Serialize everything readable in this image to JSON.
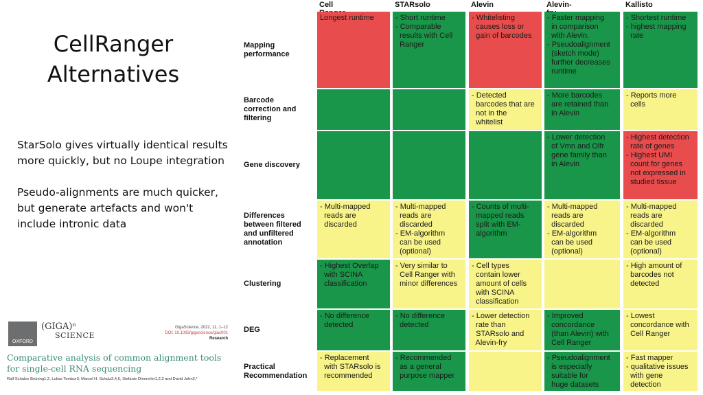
{
  "slide": {
    "title_lines": [
      "CellRanger",
      "Alternatives"
    ],
    "note1": "StarSolo gives virtually identical results more quickly, but no Loupe integration",
    "note2": "Pseudo-alignments are much quicker, but generate artefacts and won't include intronic data"
  },
  "paper": {
    "publisher": "OXFORD",
    "journal_a": "(GIGA)ⁿ",
    "journal_b": "SCIENCE",
    "citation": "GigaScience, 2022, 11, 1–12",
    "doi": "DOI: 10.1093/gigascience/giac001",
    "type": "Research",
    "title": "Comparative analysis of common alignment tools for single-cell RNA sequencing",
    "authors": "Ralf Schulze Brüning1,2, Lukas Tombor3, Marcel H. Schulz3,4,5, Stefanie Dimmeler1,2,3 and David John3,*"
  },
  "colors": {
    "red": "#e84c4c",
    "green": "#1a964a",
    "yellow": "#f8f48a"
  },
  "table": {
    "columns": [
      "Cell Ranger",
      "STARsolo",
      "Alevin",
      "Alevin-fry",
      "Kallisto"
    ],
    "rows": [
      {
        "label": [
          "Mapping",
          "performance"
        ],
        "cells": [
          {
            "color": "red",
            "lines": [
              "Longest runtime"
            ]
          },
          {
            "color": "green",
            "lines": [
              "- Short runtime",
              "- Comparable",
              "  results with Cell",
              "  Ranger"
            ]
          },
          {
            "color": "red",
            "lines": [
              "- Whitelisting",
              "  causes loss or",
              "  gain of barcodes"
            ]
          },
          {
            "color": "green",
            "lines": [
              "- Faster mapping",
              "  in comparison",
              "  with Alevin.",
              "- Pseudoalignment",
              "  (sketch mode)",
              "  further decreases",
              "  runtime"
            ]
          },
          {
            "color": "green",
            "lines": [
              "- Shortest runtime",
              "- highest mapping",
              "  rate"
            ]
          }
        ]
      },
      {
        "label": [
          "Barcode",
          "correction and",
          "filtering"
        ],
        "cells": [
          {
            "color": "green",
            "lines": []
          },
          {
            "color": "green",
            "lines": []
          },
          {
            "color": "yellow",
            "lines": [
              "- Detected",
              "  barcodes that are",
              "  not in the",
              "  whitelist"
            ]
          },
          {
            "color": "green",
            "lines": [
              "- More barcodes",
              "  are retained than",
              "  in Alevin"
            ]
          },
          {
            "color": "yellow",
            "lines": [
              "- Reports more",
              "  cells"
            ]
          }
        ]
      },
      {
        "label": [
          "Gene discovery"
        ],
        "cells": [
          {
            "color": "green",
            "lines": []
          },
          {
            "color": "green",
            "lines": []
          },
          {
            "color": "green",
            "lines": []
          },
          {
            "color": "green",
            "lines": [
              "- Lower detection",
              "  of Vmn and Olfr",
              "  gene family than",
              "  in Alevin"
            ]
          },
          {
            "color": "red",
            "lines": [
              "- Highest detection",
              "  rate of genes",
              "- Highest UMI",
              "  count for genes",
              "  not expressed in",
              "  studied tissue"
            ]
          }
        ]
      },
      {
        "label": [
          "Differences",
          "between filtered",
          "and unfiltered",
          "annotation"
        ],
        "cells": [
          {
            "color": "yellow",
            "lines": [
              "- Multi-mapped",
              "  reads are",
              "  discarded"
            ]
          },
          {
            "color": "yellow",
            "lines": [
              "- Multi-mapped",
              "  reads are",
              "  discarded",
              "- EM-algorithm",
              "  can be used",
              "  (optional)"
            ]
          },
          {
            "color": "green",
            "lines": [
              "- Counts of multi-",
              "  mapped reads",
              "  split with EM-",
              "  algorithm"
            ]
          },
          {
            "color": "yellow",
            "lines": [
              "- Multi-mapped",
              "  reads are",
              "  discarded",
              "- EM-algorithm",
              "  can be used",
              "  (optional)"
            ]
          },
          {
            "color": "yellow",
            "lines": [
              "- Multi-mapped",
              "  reads are",
              "  discarded",
              "- EM-algorithm",
              "  can be used",
              "  (optional)"
            ]
          }
        ]
      },
      {
        "label": [
          "Clustering"
        ],
        "cells": [
          {
            "color": "green",
            "lines": [
              "- Highest Overlap",
              "  with SCINA",
              "  classification"
            ]
          },
          {
            "color": "yellow",
            "lines": [
              "- Very similar to",
              "  Cell Ranger with",
              "  minor differences"
            ]
          },
          {
            "color": "yellow",
            "lines": [
              "- Cell types",
              "  contain lower",
              "  amount of cells",
              "  with SCINA",
              "  classification"
            ]
          },
          {
            "color": "yellow",
            "lines": []
          },
          {
            "color": "yellow",
            "lines": [
              "- High amount of",
              "  barcodes not",
              "  detected"
            ]
          }
        ]
      },
      {
        "label": [
          "DEG"
        ],
        "cells": [
          {
            "color": "green",
            "lines": [
              "- No difference",
              "  detected"
            ]
          },
          {
            "color": "green",
            "lines": [
              "- No difference",
              "  detected"
            ]
          },
          {
            "color": "yellow",
            "lines": [
              "- Lower detection",
              "  rate than",
              "  STARsolo and",
              "  Alevin-fry"
            ]
          },
          {
            "color": "green",
            "lines": [
              "- Improved",
              "  concordance",
              "  (than Alevin) with",
              "  Cell Ranger"
            ]
          },
          {
            "color": "yellow",
            "lines": [
              "- Lowest",
              "  concordance with",
              "  Cell Ranger"
            ]
          }
        ]
      },
      {
        "label": [
          "Practical",
          "Recommendation"
        ],
        "cells": [
          {
            "color": "yellow",
            "lines": [
              "- Replacement",
              "  with STARsolo is",
              "  recommended"
            ]
          },
          {
            "color": "green",
            "lines": [
              "- Recommended",
              "  as a general",
              "  purpose mapper"
            ]
          },
          {
            "color": "yellow",
            "lines": []
          },
          {
            "color": "green",
            "lines": [
              "- Pseudoalignment",
              "  is especially",
              "  suitable for",
              "  huge datasets"
            ]
          },
          {
            "color": "yellow",
            "lines": [
              "- Fast mapper",
              "- qualitative issues",
              "  with gene",
              "  detection"
            ]
          }
        ]
      }
    ]
  }
}
